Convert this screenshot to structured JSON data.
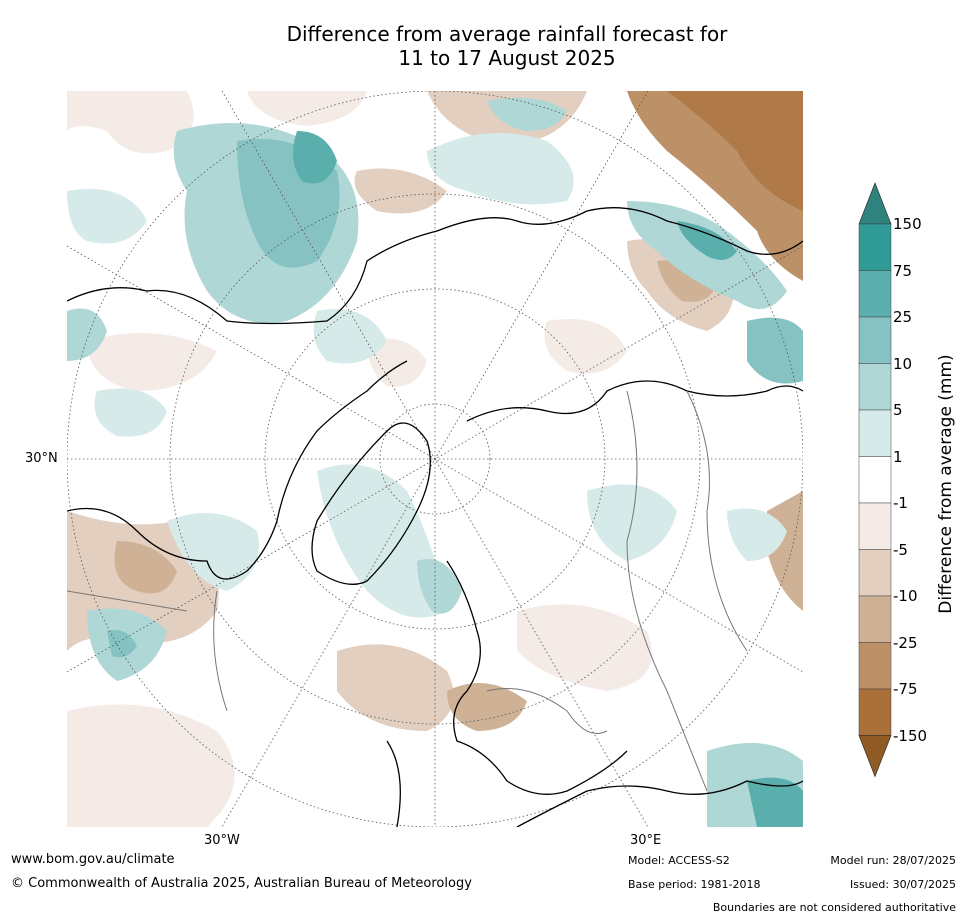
{
  "title": {
    "line1": "Difference from average rainfall forecast for",
    "line2": "11 to 17 August 2025"
  },
  "map": {
    "projection": "north polar stereographic",
    "labels": {
      "lat_30n": "30°N",
      "lon_30w": "30°W",
      "lon_30e": "30°E"
    }
  },
  "colorbar": {
    "label": "Difference from average (mm)",
    "ticks": [
      "150",
      "75",
      "25",
      "10",
      "5",
      "1",
      "-1",
      "-5",
      "-10",
      "-25",
      "-75",
      "-150"
    ],
    "colors": [
      "#2f837f",
      "#2f9a96",
      "#5aaeac",
      "#85c2c1",
      "#aed7d6",
      "#d6eae9",
      "#ffffff",
      "#f4ebe6",
      "#e2cfc0",
      "#cfb196",
      "#bd9167",
      "#aa703a",
      "#8f5a24"
    ]
  },
  "footer": {
    "website": "www.bom.gov.au/climate",
    "copyright": "© Commonwealth of Australia 2025, Australian Bureau of Meteorology",
    "model": "Model: ACCESS-S2",
    "base_period": "Base period: 1981-2018",
    "model_run": "Model run: 28/07/2025",
    "issued": "Issued: 30/07/2025",
    "boundaries_note": "Boundaries are not considered authoritative"
  }
}
